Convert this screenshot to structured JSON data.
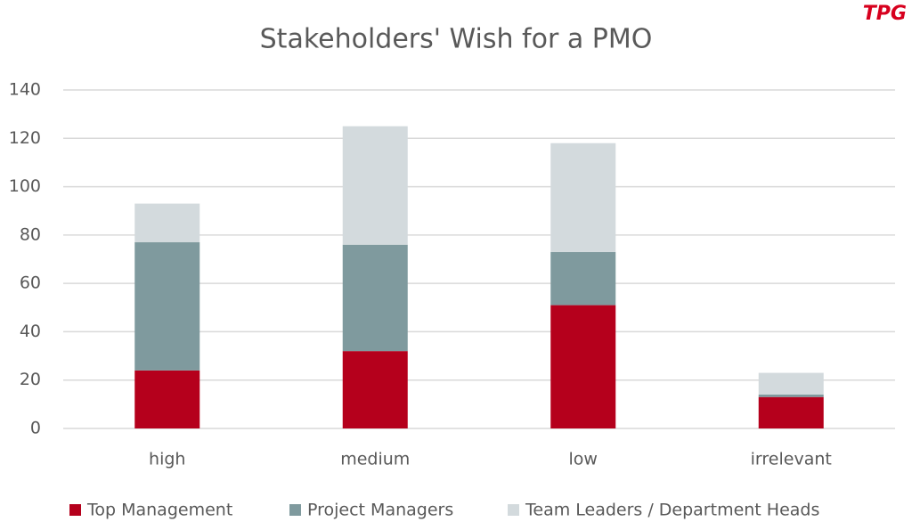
{
  "logo": "TPG",
  "chart_data": {
    "type": "stacked-bar",
    "title": "Stakeholders' Wish for a PMO",
    "categories": [
      "high",
      "medium",
      "low",
      "irrelevant"
    ],
    "series": [
      {
        "name": "Top Management",
        "color": "#b5001c",
        "values": [
          24,
          32,
          51,
          13
        ]
      },
      {
        "name": "Project Managers",
        "color": "#7f9a9e",
        "values": [
          53,
          44,
          22,
          1
        ]
      },
      {
        "name": "Team Leaders / Department Heads",
        "color": "#d3dadd",
        "values": [
          16,
          49,
          45,
          9
        ]
      }
    ],
    "ylim": [
      0,
      140
    ],
    "yticks": [
      0,
      20,
      40,
      60,
      80,
      100,
      120,
      140
    ],
    "grid": true,
    "legend": "bottom"
  }
}
